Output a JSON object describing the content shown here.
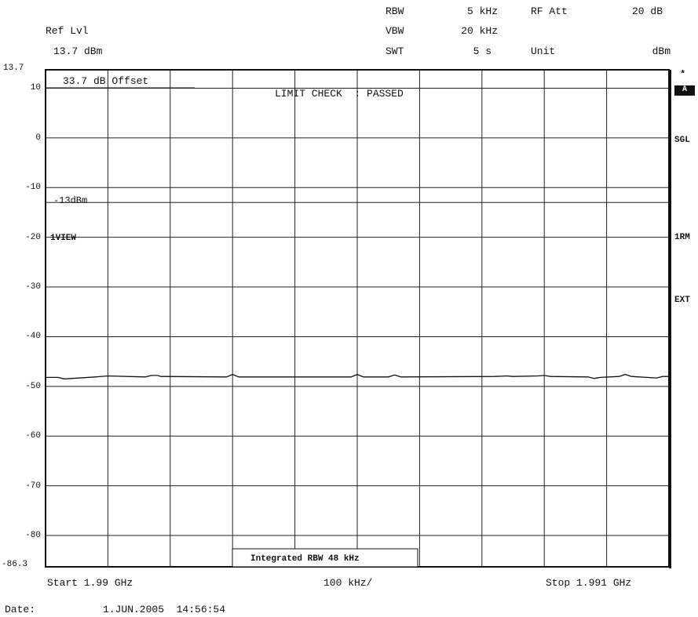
{
  "header": {
    "ref_lvl_label": "Ref Lvl",
    "ref_lvl_value": "13.7 dBm",
    "rbw_label": "RBW",
    "rbw_value": "5 kHz",
    "vbw_label": "VBW",
    "vbw_value": "20 kHz",
    "swt_label": "SWT",
    "swt_value": "5 s",
    "rf_att_label": "RF Att",
    "rf_att_value": "20 dB",
    "unit_label": "Unit",
    "unit_value": "dBm"
  },
  "annotations": {
    "offset": "33.7 dB Offset",
    "limit_check": "LIMIT CHECK  : PASSED",
    "limit_line": "-13dBm",
    "view": "1VIEW",
    "integrated_rbw": "Integrated RBW 48 kHz"
  },
  "side_labels": {
    "star": "*",
    "trace_a": "A",
    "sgl": "SGL",
    "rm": "1RM",
    "ext": "EXT"
  },
  "footer": {
    "start": "Start 1.99 GHz",
    "span_per_div": "100 kHz/",
    "stop": "Stop 1.991 GHz",
    "date_label": "Date:",
    "date_value": "1.JUN.2005  14:56:54"
  },
  "chart_data": {
    "type": "line",
    "title": "",
    "xlabel": "",
    "ylabel": "",
    "ylim": [
      -86.3,
      13.7
    ],
    "y_ticks": [
      "13.7",
      "10",
      "0",
      "-10",
      "-20",
      "-30",
      "-40",
      "-50",
      "-60",
      "-70",
      "-80",
      "-86.3"
    ],
    "y_tick_values": [
      13.7,
      10,
      0,
      -10,
      -20,
      -30,
      -40,
      -50,
      -60,
      -70,
      -80,
      -86.3
    ],
    "xlim": [
      0,
      1
    ],
    "limit_line_dbm": -13,
    "grid": true,
    "series": [
      {
        "x": [
          0,
          0.02,
          0.03,
          0.08,
          0.1,
          0.16,
          0.17,
          0.18,
          0.185,
          0.19,
          0.29,
          0.3,
          0.31,
          0.49,
          0.5,
          0.51,
          0.55,
          0.56,
          0.57,
          0.72,
          0.74,
          0.75,
          0.79,
          0.8,
          0.81,
          0.87,
          0.88,
          0.89,
          0.92,
          0.93,
          0.94,
          0.98,
          0.99,
          1.0
        ],
        "values": [
          -48.2,
          -48.2,
          -48.5,
          -48.1,
          -47.9,
          -48.1,
          -47.8,
          -47.8,
          -48.0,
          -48.0,
          -48.1,
          -47.6,
          -48.1,
          -48.1,
          -47.6,
          -48.1,
          -48.1,
          -47.7,
          -48.1,
          -48.0,
          -47.9,
          -48.0,
          -47.9,
          -47.8,
          -48.0,
          -48.1,
          -48.4,
          -48.2,
          -48.0,
          -47.6,
          -48.0,
          -48.3,
          -48.0,
          -48.0
        ]
      }
    ]
  }
}
